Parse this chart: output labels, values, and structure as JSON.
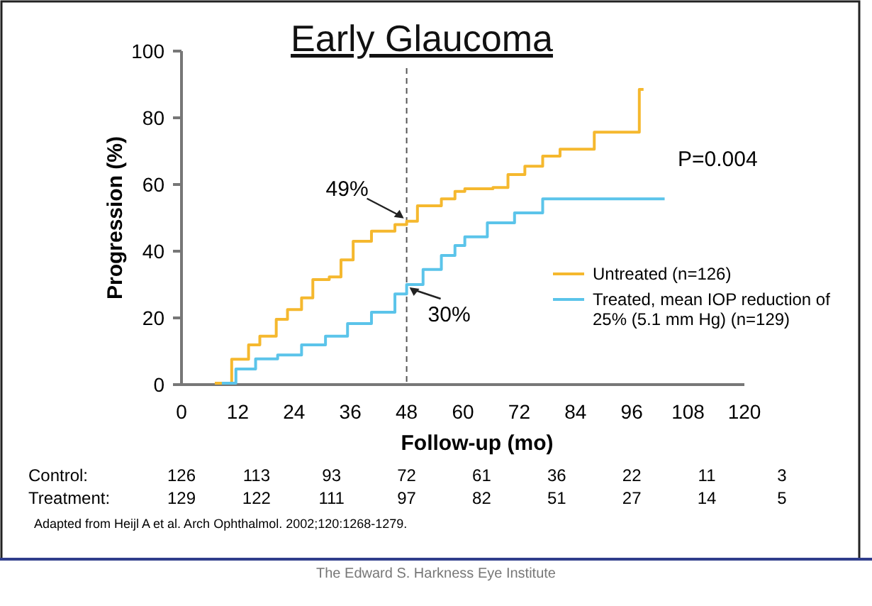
{
  "chart_data": {
    "type": "step",
    "title": "Early Glaucoma",
    "xlabel": "Follow-up (mo)",
    "ylabel": "Progression (%)",
    "xlim": [
      0,
      120
    ],
    "xticks": [
      0,
      12,
      24,
      36,
      48,
      60,
      72,
      84,
      96,
      108,
      120
    ],
    "ylim": [
      0,
      100
    ],
    "yticks": [
      0,
      20,
      40,
      60,
      80,
      100
    ],
    "series": [
      {
        "name": "Untreated (n=126)",
        "color": "#f5b82e",
        "x": [
          7.1,
          10.7,
          14.3,
          16.7,
          20.2,
          22.6,
          25.6,
          28,
          31.5,
          34,
          36.6,
          40.5,
          45.5,
          48,
          50.3,
          55.4,
          58.3,
          60.4,
          66.4,
          69.6,
          73.2,
          77,
          80.7,
          88,
          97.6,
          98.5
        ],
        "values": [
          0.4,
          7.6,
          11.9,
          14.5,
          19.6,
          22.5,
          26,
          31.5,
          32.3,
          37.4,
          43,
          46,
          48,
          49,
          53.6,
          55.7,
          57.9,
          58.7,
          59.1,
          63,
          65.5,
          68.5,
          70.6,
          75.7,
          88.5,
          88.5
        ]
      },
      {
        "name": "Treated, mean IOP reduction of 25% (5.1 mm Hg) (n=129)",
        "color": "#5bc4ea",
        "x": [
          8.6,
          11.6,
          15.8,
          20.5,
          25.6,
          30.7,
          35.4,
          40.5,
          45.5,
          48,
          51.5,
          55.4,
          58.3,
          60.4,
          65.2,
          71,
          77,
          103
        ],
        "values": [
          0.4,
          4.7,
          7.7,
          8.9,
          11.9,
          14.5,
          18.3,
          21.7,
          27.2,
          30,
          34.5,
          38.7,
          41.7,
          44.3,
          48.5,
          51.5,
          55.7,
          55.7
        ]
      }
    ],
    "ref_lines": [
      {
        "axis": "x",
        "value": 48,
        "line_style": "dashed",
        "color": "#555555"
      }
    ],
    "annotations": [
      {
        "text": "49%",
        "x": 48,
        "y": 49
      },
      {
        "text": "30%",
        "x": 48,
        "y": 30
      },
      "P=0.004",
      "Control:",
      "126",
      "113",
      "93",
      "72",
      "61",
      "36",
      "22",
      "11",
      "3",
      "Treatment:",
      "129",
      "122",
      "111",
      "97",
      "82",
      "51",
      "27",
      "14",
      "5",
      "Adapted from Heijl A et al. Arch Ophthalmol. 2002;120:1268-1279.",
      "The Edward S. Harkness Eye Institute"
    ],
    "legend": "bottom right",
    "grid": false,
    "line_style": "solid"
  }
}
